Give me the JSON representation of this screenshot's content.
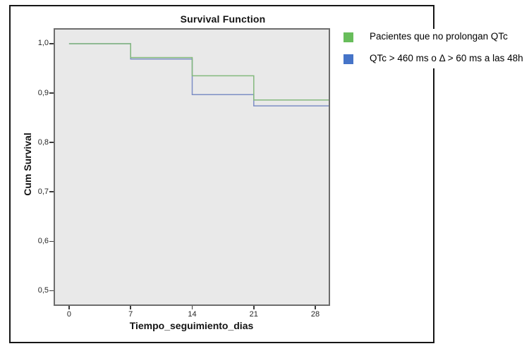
{
  "figure": {
    "title": "Survival Function",
    "background_color": "#ffffff",
    "outer_border_color": "#161616"
  },
  "chart_data": {
    "type": "line",
    "subtype": "kaplan-meier-step",
    "title": "Survival Function",
    "xlabel": "Tiempo_seguimiento_dias",
    "ylabel": "Cum Survival",
    "xlim": [
      -1.6,
      29.52
    ],
    "ylim": [
      0.472,
      1.0285
    ],
    "x_end": 29.52,
    "grid": false,
    "legend_position": "top-right-outside",
    "plot_bg": "#e9e9e9",
    "plot_border": "#6d6d6d",
    "xticks": [
      {
        "v": 0,
        "label": "0"
      },
      {
        "v": 7,
        "label": "7"
      },
      {
        "v": 14,
        "label": "14"
      },
      {
        "v": 21,
        "label": "21"
      },
      {
        "v": 28,
        "label": "28"
      }
    ],
    "yticks": [
      {
        "v": 1.0,
        "label": "1,0"
      },
      {
        "v": 0.9,
        "label": "0,9"
      },
      {
        "v": 0.8,
        "label": "0,8"
      },
      {
        "v": 0.7,
        "label": "0,7"
      },
      {
        "v": 0.6,
        "label": "0,6"
      },
      {
        "v": 0.5,
        "label": "0,5"
      }
    ],
    "series": [
      {
        "id": "no-prolongan-qtc",
        "name": "Pacientes que no prolongan QTc",
        "line_color": "#83b97d",
        "swatch_color": "#68bd5b",
        "steps": [
          [
            0,
            1.0
          ],
          [
            7,
            0.972
          ],
          [
            14,
            0.935
          ],
          [
            21,
            0.886
          ]
        ]
      },
      {
        "id": "qtc-prolongado",
        "name": "QTc > 460 ms o Δ > 60 ms a las 48h",
        "line_color": "#7d8ec5",
        "swatch_color": "#4674c8",
        "steps": [
          [
            0,
            1.0
          ],
          [
            7,
            0.969
          ],
          [
            14,
            0.897
          ],
          [
            21,
            0.874
          ]
        ]
      }
    ]
  }
}
